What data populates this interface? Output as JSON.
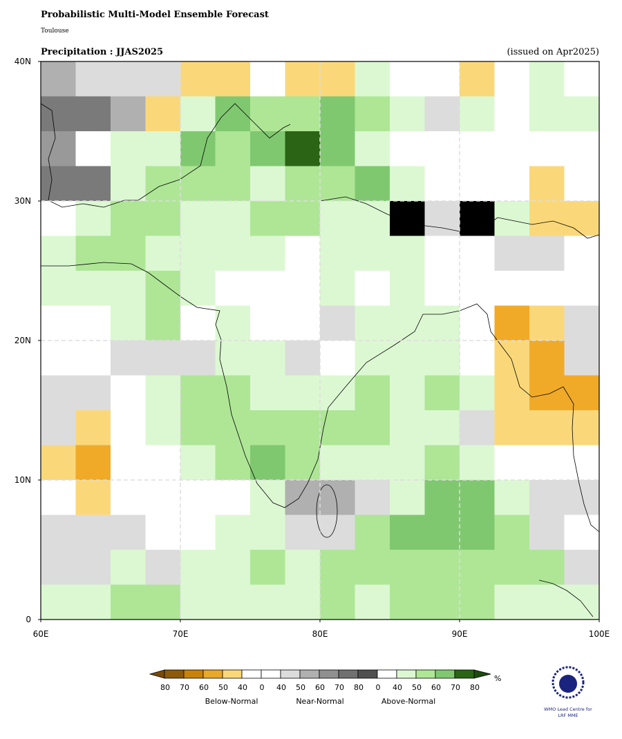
{
  "header": {
    "title": "Probabilistic Multi-Model Ensemble Forecast",
    "centre": "Toulouse",
    "variable": "Precipitation : JJAS2025",
    "issued": "(issued on Apr2025)"
  },
  "map": {
    "xlim": [
      60,
      100
    ],
    "ylim": [
      0,
      40
    ],
    "xticks": [
      {
        "value": 60,
        "label": "60E"
      },
      {
        "value": 70,
        "label": "70E"
      },
      {
        "value": 80,
        "label": "80E"
      },
      {
        "value": 90,
        "label": "90E"
      },
      {
        "value": 100,
        "label": "100E"
      }
    ],
    "yticks": [
      0,
      {
        "value": 10,
        "label": "10N"
      },
      {
        "value": 20,
        "label": "20N"
      },
      {
        "value": 30,
        "label": "30N"
      },
      {
        "value": 40,
        "label": "40N"
      }
    ],
    "cell_colors": {
      "W": "#ffffff",
      "y": "#fad87a",
      "o": "#f0aa28",
      "g": "#dcdcdc",
      "h": "#b0b0b0",
      "i": "#999999",
      "j": "#7a7a7a",
      "a": "#dcf8d2",
      "b": "#aee696",
      "c": "#80c870",
      "d": "#2a6414"
    },
    "grid": [
      "hgggyyWyyaWWyWaW",
      "jjhyacbbcbagaWaa",
      "iWaacbcdcaWWWWWW",
      "jjabbbabbcaWWWyW",
      "Wabbaabbaawgwayy",
      "abbaaaaWaaaWWggW",
      "aaabaWWWaWaWWWWW",
      "WWabWaWWgaaaWoyg",
      "WWgggaagWaaaWyog",
      "ggWabbaaababayoo",
      "gyWabbbbbbaagyyy",
      "yoWWabcbaaabaWWW",
      "WyWWWWahhgaccagg",
      "gggWWaaggbcccbgW",
      "ggagaababbbbbbbg",
      "aabbaaaababbbaaa"
    ]
  },
  "legend": {
    "labels": [
      80,
      70,
      60,
      50,
      40,
      0,
      40,
      50,
      60,
      70,
      80,
      0,
      40,
      50,
      60,
      70,
      80
    ],
    "colors": [
      "#8c5a0a",
      "#c8820a",
      "#e8a82a",
      "#fad87a",
      "#ffffff",
      "#ffffff",
      "#dcdcdc",
      "#b0b0b0",
      "#909090",
      "#707070",
      "#505050",
      "#ffffff",
      "#dcf8d2",
      "#aee696",
      "#80c870",
      "#2a6414"
    ],
    "unit": "%",
    "groups": [
      "Below-Normal",
      "Near-Normal",
      "Above-Normal"
    ]
  },
  "logo": {
    "line1": "WMO Lead Centre for",
    "line2": "LRF MME"
  }
}
